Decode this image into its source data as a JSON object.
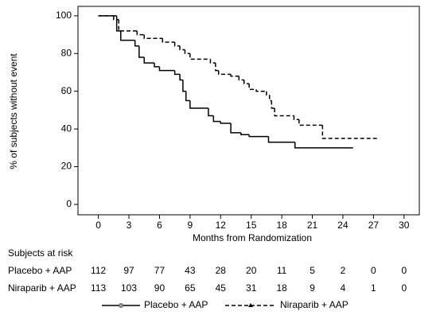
{
  "chart_data": {
    "type": "step",
    "xlabel": "Months from Randomization",
    "ylabel": "% of subjects without event",
    "xlim": [
      -2,
      31.5
    ],
    "ylim": [
      -5.5,
      105
    ],
    "xticks": [
      0,
      3,
      6,
      9,
      12,
      15,
      18,
      21,
      24,
      27,
      30
    ],
    "yticks": [
      0,
      20,
      40,
      60,
      80,
      100
    ],
    "series": [
      {
        "name": "Placebo + AAP",
        "color": "#000000",
        "dash": false,
        "marker": "circle",
        "x": [
          0,
          1.8,
          2.2,
          3.6,
          4.0,
          4.5,
          5.5,
          6.0,
          7.5,
          8.0,
          8.3,
          8.6,
          9.0,
          10.8,
          11.3,
          12.0,
          13.0,
          14.0,
          14.8,
          16.7,
          19.3,
          25.0
        ],
        "values": [
          100,
          92,
          87,
          84,
          78,
          75,
          73,
          71,
          69,
          66,
          60,
          55,
          51,
          47,
          44,
          43,
          38,
          37,
          36,
          33,
          30,
          30
        ]
      },
      {
        "name": "Niraparib + AAP",
        "color": "#000000",
        "dash": true,
        "marker": "triangle",
        "x": [
          0,
          1.5,
          2.0,
          3.8,
          4.5,
          6.3,
          7.5,
          8.0,
          8.5,
          9.0,
          11.0,
          11.5,
          11.8,
          13.0,
          13.8,
          14.3,
          14.8,
          15.5,
          16.5,
          16.8,
          17.0,
          17.3,
          19.2,
          19.7,
          22.0,
          27.5
        ],
        "values": [
          100,
          98,
          92,
          90,
          88,
          86,
          84,
          82,
          80,
          77,
          75,
          71,
          69,
          68,
          66,
          64,
          61,
          60,
          58,
          55,
          51,
          47,
          45,
          42,
          35,
          35
        ]
      }
    ]
  },
  "risk_table": {
    "title": "Subjects at risk",
    "rows": [
      {
        "label": "Placebo + AAP",
        "counts": [
          112,
          97,
          77,
          43,
          28,
          20,
          11,
          5,
          2,
          0,
          0
        ]
      },
      {
        "label": "Niraparib + AAP",
        "counts": [
          113,
          103,
          90,
          65,
          45,
          31,
          18,
          9,
          4,
          1,
          0
        ]
      }
    ]
  }
}
